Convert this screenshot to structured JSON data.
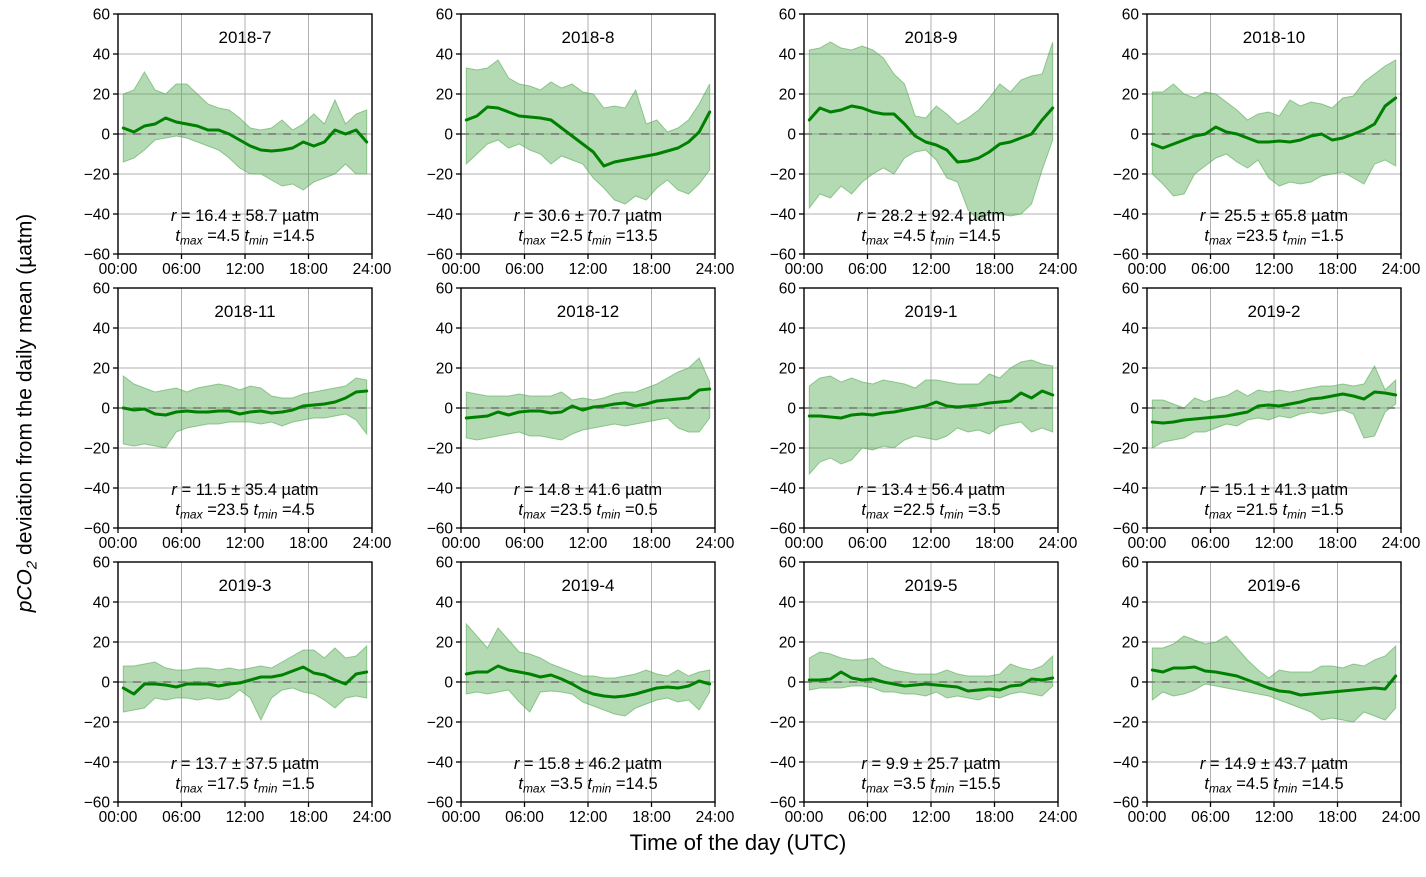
{
  "figure": {
    "ylabel_italic": "pCO",
    "ylabel_sub": "2",
    "ylabel_rest": " deviation from the daily mean (µatm)",
    "xlabel": "Time of the day (UTC)",
    "colors": {
      "line": "#008000",
      "band_fill": "#4da64d",
      "band_opacity": 0.42,
      "band_edge": "#4da64d",
      "grid": "#b0b0b0",
      "zero_line": "#808080",
      "axis": "#000000",
      "text": "#000000"
    },
    "labels": {
      "r_var": "r",
      "eq": "=",
      "pm": "±",
      "units": "µatm",
      "t_var": "t",
      "max_sub": "max",
      "min_sub": "min"
    }
  },
  "chart_data": {
    "type": "line",
    "xlabel": "Time of the day (UTC)",
    "ylabel": "pCO2 deviation from the daily mean (µatm)",
    "xlim": [
      0,
      24
    ],
    "ylim": [
      -60,
      60
    ],
    "grid": true,
    "xticks": [
      0,
      6,
      12,
      18,
      24
    ],
    "xtick_labels": [
      "00:00",
      "06:00",
      "12:00",
      "18:00",
      "24:00"
    ],
    "yticks": [
      -60,
      -40,
      -20,
      0,
      20,
      40,
      60
    ],
    "x": [
      0.5,
      1.5,
      2.5,
      3.5,
      4.5,
      5.5,
      6.5,
      7.5,
      8.5,
      9.5,
      10.5,
      11.5,
      12.5,
      13.5,
      14.5,
      15.5,
      16.5,
      17.5,
      18.5,
      19.5,
      20.5,
      21.5,
      22.5,
      23.5
    ],
    "subplots": [
      {
        "title": "2018-7",
        "r": "16.4",
        "sd": "58.7",
        "tmax": "4.5",
        "tmin": "14.5",
        "mean": [
          3,
          1,
          4,
          5,
          8,
          6,
          5,
          4,
          2,
          2,
          0,
          -3,
          -6,
          -8,
          -8.5,
          -8,
          -7,
          -4,
          -6,
          -4,
          2,
          0,
          2,
          -4
        ],
        "upper": [
          20,
          22,
          31,
          22,
          20,
          25,
          25,
          20,
          15,
          13,
          12,
          8,
          3,
          2,
          3,
          7,
          2,
          5,
          10,
          5,
          17,
          5,
          10,
          12
        ],
        "lower": [
          -14,
          -12,
          -8,
          -3,
          -2,
          -1,
          -2,
          -4,
          -6,
          -8,
          -12,
          -17,
          -20,
          -20,
          -23,
          -26,
          -25,
          -28,
          -24,
          -22,
          -20,
          -15,
          -20,
          -20
        ]
      },
      {
        "title": "2018-8",
        "r": "30.6",
        "sd": "70.7",
        "tmax": "2.5",
        "tmin": "13.5",
        "mean": [
          7,
          9,
          13.5,
          13,
          11,
          9,
          8.5,
          8,
          7,
          3,
          -1,
          -5,
          -9,
          -16,
          -14,
          -13,
          -12,
          -11,
          -10,
          -8.5,
          -7,
          -4,
          1,
          11
        ],
        "upper": [
          33,
          32,
          33,
          37,
          28,
          25,
          24,
          22,
          26,
          23,
          25,
          21,
          20,
          13,
          14,
          13,
          22,
          5,
          7,
          1,
          3,
          7,
          15,
          25
        ],
        "lower": [
          -15,
          -10,
          -5,
          -3,
          -7,
          -5,
          -8,
          -10,
          -15,
          -11,
          -13,
          -15,
          -22,
          -27,
          -33,
          -35,
          -31,
          -33,
          -27,
          -23,
          -28,
          -30,
          -25,
          -18
        ]
      },
      {
        "title": "2018-9",
        "r": "28.2",
        "sd": "92.4",
        "tmax": "4.5",
        "tmin": "14.5",
        "mean": [
          7,
          13,
          11,
          12,
          14,
          13,
          11,
          10,
          10,
          5,
          -1,
          -4,
          -5.5,
          -8,
          -14,
          -13.5,
          -12,
          -9,
          -5,
          -4,
          -2,
          0,
          7,
          13
        ],
        "upper": [
          42,
          43,
          46,
          43,
          42,
          44,
          42,
          38,
          30,
          25,
          9,
          8,
          14,
          10,
          5,
          8,
          12,
          18,
          25,
          21,
          27,
          29,
          30,
          46
        ],
        "lower": [
          -37,
          -30,
          -32,
          -26,
          -30,
          -24,
          -20,
          -17,
          -20,
          -12,
          -9,
          -8,
          -13,
          -22,
          -24,
          -38,
          -43,
          -40,
          -40,
          -41,
          -40,
          -35,
          -18,
          -3
        ]
      },
      {
        "title": "2018-10",
        "r": "25.5",
        "sd": "65.8",
        "tmax": "23.5",
        "tmin": "1.5",
        "mean": [
          -5,
          -7,
          -5,
          -3,
          -1,
          0,
          3.5,
          1,
          0,
          -2,
          -4,
          -4,
          -3.5,
          -4,
          -3,
          -1,
          0,
          -3,
          -2,
          0,
          2,
          5,
          14,
          18
        ],
        "upper": [
          21,
          21,
          25,
          20,
          18,
          21,
          20,
          16,
          12,
          7,
          10,
          11,
          9,
          17,
          14,
          16,
          15,
          13,
          18,
          19,
          26,
          30,
          34,
          37
        ],
        "lower": [
          -20,
          -25,
          -31,
          -30,
          -20,
          -16,
          -12,
          -10,
          -14,
          -17,
          -13,
          -22,
          -26,
          -24,
          -25,
          -24,
          -21,
          -20,
          -19,
          -22,
          -25,
          -15,
          -13,
          -16
        ]
      },
      {
        "title": "2018-11",
        "r": "11.5",
        "sd": "35.4",
        "tmax": "23.5",
        "tmin": "4.5",
        "mean": [
          0,
          -1,
          -0.5,
          -3,
          -3.5,
          -2,
          -1.5,
          -2,
          -2,
          -1.5,
          -1.5,
          -3,
          -2,
          -1.5,
          -2.5,
          -2,
          -1,
          1,
          1.5,
          2,
          3,
          5,
          8,
          8.5
        ],
        "upper": [
          16,
          12,
          10,
          8,
          9,
          10,
          8,
          10,
          11,
          12,
          11,
          9,
          11,
          10,
          6,
          5,
          5,
          7,
          8,
          9,
          10,
          11,
          15,
          14
        ],
        "lower": [
          -18,
          -19,
          -18,
          -19,
          -20,
          -12,
          -10,
          -9,
          -8,
          -8,
          -7,
          -7,
          -7,
          -8,
          -7,
          -9,
          -7,
          -6,
          -5,
          -5,
          -4,
          -3,
          -6,
          -13
        ]
      },
      {
        "title": "2018-12",
        "r": "14.8",
        "sd": "41.6",
        "tmax": "23.5",
        "tmin": "0.5",
        "mean": [
          -5,
          -4.5,
          -4,
          -2,
          -3.5,
          -2,
          -1.5,
          -1.5,
          -2.5,
          -2,
          1,
          -1,
          0.5,
          1,
          2,
          2.5,
          1,
          2,
          3.5,
          4,
          4.5,
          5,
          9,
          9.5
        ],
        "upper": [
          8,
          7,
          6,
          6,
          6,
          7,
          6,
          6,
          6,
          8,
          4,
          5,
          4,
          5,
          7,
          8,
          8,
          10,
          12,
          15,
          18,
          20,
          25,
          13
        ],
        "lower": [
          -15,
          -16,
          -15,
          -14,
          -13,
          -12,
          -14,
          -14,
          -15,
          -16,
          -13,
          -11,
          -10,
          -9,
          -8,
          -9,
          -8,
          -7,
          -6,
          -5,
          -10,
          -12,
          -12,
          -5
        ]
      },
      {
        "title": "2019-1",
        "r": "13.4",
        "sd": "56.4",
        "tmax": "22.5",
        "tmin": "3.5",
        "mean": [
          -4,
          -4,
          -4.5,
          -5,
          -3.5,
          -3,
          -3.5,
          -2.5,
          -2,
          -1,
          0,
          1,
          3,
          1,
          0.5,
          1,
          1.5,
          2.5,
          3,
          3.5,
          7.5,
          5,
          8.5,
          6.5
        ],
        "upper": [
          11,
          15,
          16,
          13,
          15,
          13,
          12,
          14,
          13,
          12,
          10,
          14,
          14,
          13,
          12,
          12,
          12,
          17,
          15,
          20,
          23,
          24,
          22,
          21
        ],
        "lower": [
          -33,
          -27,
          -25,
          -28,
          -26,
          -20,
          -21,
          -19,
          -20,
          -16,
          -14,
          -15,
          -16,
          -14,
          -10,
          -12,
          -11,
          -13,
          -9,
          -8,
          -7,
          -12,
          -10,
          -12
        ]
      },
      {
        "title": "2019-2",
        "r": "15.1",
        "sd": "41.3",
        "tmax": "21.5",
        "tmin": "1.5",
        "mean": [
          -7,
          -7.5,
          -7,
          -6,
          -5.5,
          -5,
          -4.5,
          -4,
          -3,
          -2,
          1,
          1.5,
          1,
          2,
          3,
          4.5,
          5,
          6,
          7,
          6,
          4.5,
          8,
          7.5,
          6.5
        ],
        "upper": [
          4,
          4,
          2,
          0,
          5,
          3,
          5,
          6,
          9,
          6,
          9,
          8,
          9,
          8,
          9,
          10,
          11,
          11,
          12,
          11,
          12,
          21,
          9,
          14
        ],
        "lower": [
          -20,
          -17,
          -16,
          -15,
          -12,
          -12,
          -10,
          -8,
          -9,
          -6,
          -5,
          -6,
          -4,
          -5,
          -3,
          -2,
          -3,
          -2,
          -1,
          -3,
          -15,
          -14,
          -2,
          2
        ]
      },
      {
        "title": "2019-3",
        "r": "13.7",
        "sd": "37.5",
        "tmax": "17.5",
        "tmin": "1.5",
        "mean": [
          -3,
          -6,
          -1,
          -1,
          -1.5,
          -2.5,
          -1,
          -1,
          -1,
          -2,
          -1,
          -0.5,
          1,
          2.5,
          2.5,
          3.5,
          5.5,
          7.5,
          4.5,
          3.5,
          1,
          -1,
          4,
          5
        ],
        "upper": [
          8,
          8,
          9,
          10,
          7,
          6,
          6,
          7,
          7,
          6,
          7,
          6,
          7,
          8,
          7,
          10,
          13,
          16,
          16,
          12,
          17,
          12,
          13,
          18
        ],
        "lower": [
          -15,
          -14,
          -13,
          -8,
          -9,
          -8,
          -8,
          -9,
          -8,
          -9,
          -8,
          -4,
          -8,
          -19,
          -8,
          -4,
          -3,
          -5,
          -6,
          -9,
          -13,
          -8,
          -7,
          -8
        ]
      },
      {
        "title": "2019-4",
        "r": "15.8",
        "sd": "46.2",
        "tmax": "3.5",
        "tmin": "14.5",
        "mean": [
          4,
          5,
          5,
          8,
          6,
          5,
          4,
          2.5,
          3.5,
          1.5,
          -1,
          -4,
          -6,
          -7,
          -7.5,
          -7,
          -6,
          -4.5,
          -3,
          -2.5,
          -3,
          -2,
          0.5,
          -1
        ],
        "upper": [
          29,
          23,
          17,
          27,
          21,
          15,
          14,
          12,
          9,
          7,
          5,
          3,
          3,
          2,
          2,
          3,
          4,
          6,
          4,
          3,
          6,
          3,
          5,
          6
        ],
        "lower": [
          -6,
          -5,
          -6,
          -5,
          -4,
          -10,
          -15,
          -5,
          -4.5,
          -5,
          -6,
          -10,
          -12,
          -14,
          -16,
          -17,
          -13,
          -11,
          -9,
          -8,
          -10,
          -9,
          -14,
          -5
        ]
      },
      {
        "title": "2019-5",
        "r": "9.9",
        "sd": "25.7",
        "tmax": "3.5",
        "tmin": "15.5",
        "mean": [
          1,
          1,
          1.5,
          5,
          2,
          1,
          1.5,
          0,
          -1,
          -2,
          -1.5,
          -1,
          -1.5,
          -2,
          -2.5,
          -4.5,
          -4,
          -3.5,
          -4,
          -2,
          -1.5,
          1.5,
          1,
          2
        ],
        "upper": [
          12,
          15,
          14,
          12,
          11,
          11,
          12,
          8,
          6,
          5,
          4,
          4,
          4,
          6,
          4,
          3,
          3,
          3,
          4,
          9,
          7,
          6,
          8,
          13
        ],
        "lower": [
          -4,
          -3,
          -3,
          -3,
          -2,
          -2,
          -3,
          -5,
          -5,
          -6,
          -6,
          -7,
          -5,
          -8,
          -7,
          -8,
          -9,
          -7,
          -8,
          -6,
          -5,
          -6,
          -7,
          -2
        ]
      },
      {
        "title": "2019-6",
        "r": "14.9",
        "sd": "43.7",
        "tmax": "4.5",
        "tmin": "14.5",
        "mean": [
          6,
          5,
          7,
          7,
          7.5,
          5.5,
          5,
          4,
          3,
          1,
          -1,
          -3,
          -4.5,
          -5,
          -6.5,
          -6,
          -5.5,
          -5,
          -4.5,
          -4,
          -3.5,
          -3,
          -3.5,
          3
        ],
        "upper": [
          17,
          17,
          19,
          23,
          21,
          19,
          20,
          23,
          17,
          11,
          6,
          2,
          6,
          5,
          5,
          5,
          8,
          8,
          7,
          9,
          8,
          11,
          13,
          18
        ],
        "lower": [
          -9,
          -5,
          -7,
          -6,
          -4,
          -1,
          -2,
          -3,
          -4,
          -5,
          -6,
          -7,
          -9,
          -11,
          -13,
          -15,
          -19,
          -18,
          -19,
          -20,
          -15,
          -17,
          -19,
          -13
        ]
      }
    ]
  }
}
